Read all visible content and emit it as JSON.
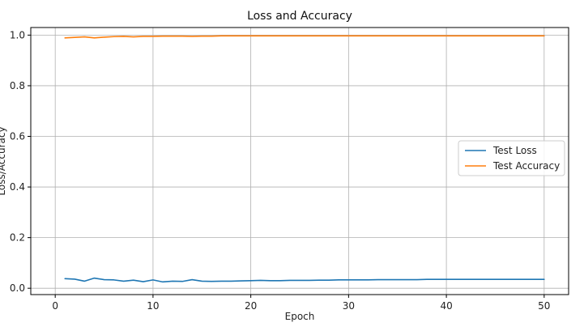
{
  "chart_data": {
    "type": "line",
    "title": "Loss and Accuracy",
    "xlabel": "Epoch",
    "ylabel": "Loss/Accuracy",
    "xlim": [
      -2.5,
      52.5
    ],
    "ylim": [
      -0.025,
      1.03
    ],
    "xticks": [
      0,
      10,
      20,
      30,
      40,
      50
    ],
    "yticks": [
      0.0,
      0.2,
      0.4,
      0.6,
      0.8,
      1.0
    ],
    "xtick_labels": [
      "0",
      "10",
      "20",
      "30",
      "40",
      "50"
    ],
    "ytick_labels": [
      "0.0",
      "0.2",
      "0.4",
      "0.6",
      "0.8",
      "1.0"
    ],
    "grid": true,
    "legend_position": "center-right",
    "x": [
      1,
      2,
      3,
      4,
      5,
      6,
      7,
      8,
      9,
      10,
      11,
      12,
      13,
      14,
      15,
      16,
      17,
      18,
      19,
      20,
      21,
      22,
      23,
      24,
      25,
      26,
      27,
      28,
      29,
      30,
      31,
      32,
      33,
      34,
      35,
      36,
      37,
      38,
      39,
      40,
      41,
      42,
      43,
      44,
      45,
      46,
      47,
      48,
      49,
      50
    ],
    "series": [
      {
        "name": "Test Loss",
        "color": "#1f77b4",
        "values": [
          0.038,
          0.036,
          0.028,
          0.04,
          0.034,
          0.033,
          0.028,
          0.032,
          0.026,
          0.033,
          0.025,
          0.028,
          0.027,
          0.034,
          0.028,
          0.027,
          0.028,
          0.028,
          0.029,
          0.03,
          0.031,
          0.03,
          0.03,
          0.031,
          0.031,
          0.031,
          0.032,
          0.032,
          0.033,
          0.033,
          0.033,
          0.033,
          0.034,
          0.034,
          0.034,
          0.034,
          0.034,
          0.035,
          0.035,
          0.035,
          0.035,
          0.035,
          0.035,
          0.035,
          0.035,
          0.035,
          0.035,
          0.035,
          0.035,
          0.035
        ]
      },
      {
        "name": "Test Accuracy",
        "color": "#ff7f0e",
        "values": [
          0.989,
          0.991,
          0.993,
          0.989,
          0.992,
          0.994,
          0.995,
          0.993,
          0.995,
          0.995,
          0.996,
          0.996,
          0.996,
          0.995,
          0.996,
          0.996,
          0.997,
          0.997,
          0.997,
          0.997,
          0.997,
          0.997,
          0.997,
          0.997,
          0.997,
          0.997,
          0.997,
          0.997,
          0.997,
          0.997,
          0.997,
          0.997,
          0.997,
          0.997,
          0.997,
          0.997,
          0.997,
          0.997,
          0.997,
          0.997,
          0.997,
          0.997,
          0.997,
          0.997,
          0.997,
          0.997,
          0.997,
          0.997,
          0.997,
          0.997
        ]
      }
    ]
  }
}
